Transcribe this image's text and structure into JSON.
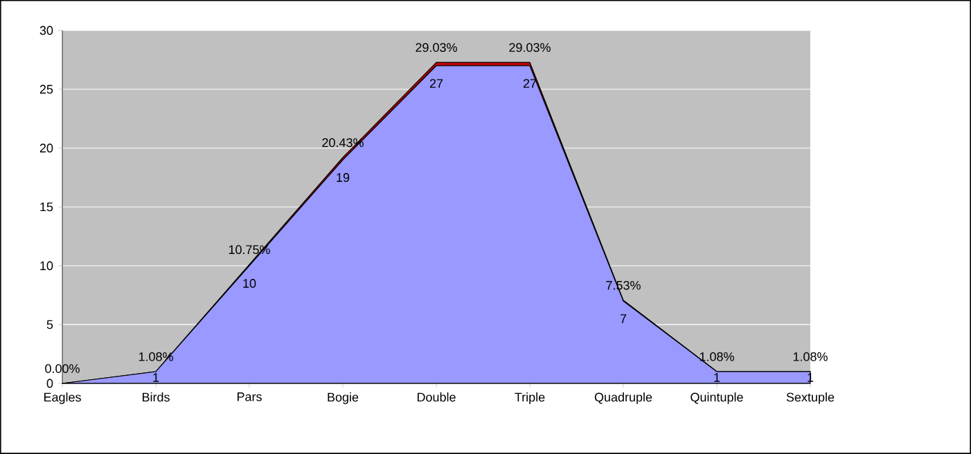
{
  "chart_data": {
    "type": "area",
    "stacked": true,
    "categories": [
      "Eagles",
      "Birds",
      "Pars",
      "Bogie",
      "Double",
      "Triple",
      "Quadruple",
      "Quintuple",
      "Sextuple"
    ],
    "series": [
      {
        "color": "#9999ff",
        "values": [
          0,
          1,
          10,
          19,
          27,
          27,
          7,
          1,
          1
        ],
        "value_labels": [
          null,
          "1",
          "10",
          "19",
          "27",
          "27",
          "7",
          "1",
          "1"
        ]
      },
      {
        "color": "#c00000",
        "values": [
          0,
          0.0108,
          0.1075,
          0.2043,
          0.2903,
          0.2903,
          0.0753,
          0.0108,
          0.0108
        ],
        "value_labels": [
          "0.00%",
          "1.08%",
          "10.75%",
          "20.43%",
          "29.03%",
          "29.03%",
          "7.53%",
          "1.08%",
          "1.08%"
        ]
      }
    ],
    "ylim": [
      0,
      30
    ],
    "yticks": [
      0,
      5,
      10,
      15,
      20,
      25,
      30
    ],
    "grid": "y"
  }
}
